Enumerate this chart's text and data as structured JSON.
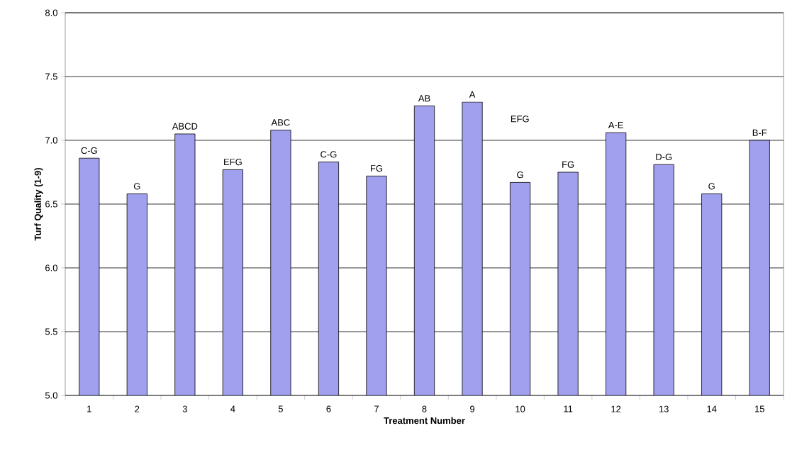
{
  "chart_data": {
    "type": "bar",
    "xlabel": "Treatment Number",
    "ylabel": "Turf Quality (1-9)",
    "categories": [
      "1",
      "2",
      "3",
      "4",
      "5",
      "6",
      "7",
      "8",
      "9",
      "10",
      "11",
      "12",
      "13",
      "14",
      "15"
    ],
    "values": [
      6.86,
      6.58,
      7.05,
      6.77,
      7.08,
      6.83,
      6.72,
      7.27,
      7.3,
      6.67,
      6.75,
      7.06,
      6.81,
      6.58,
      7.0
    ],
    "color": "#a0a0ee",
    "ylim": [
      5.0,
      8.0
    ],
    "yticks": [
      {
        "value": 5.0,
        "label": "5.0"
      },
      {
        "value": 5.5,
        "label": "5.5"
      },
      {
        "value": 6.0,
        "label": "6.0"
      },
      {
        "value": 6.5,
        "label": "6.5"
      },
      {
        "value": 7.0,
        "label": "7.0"
      },
      {
        "value": 7.5,
        "label": "7.5"
      },
      {
        "value": 8.0,
        "label": "8.0"
      }
    ],
    "grid": "y",
    "annotations": [
      {
        "text": "C-G",
        "x": "1",
        "y": 6.86
      },
      {
        "text": "G",
        "x": "2",
        "y": 6.58
      },
      {
        "text": "ABCD",
        "x": "3",
        "y": 7.05
      },
      {
        "text": "EFG",
        "x": "4",
        "y": 6.77
      },
      {
        "text": "ABC",
        "x": "5",
        "y": 7.08
      },
      {
        "text": "C-G",
        "x": "6",
        "y": 6.83
      },
      {
        "text": "FG",
        "x": "7",
        "y": 6.72
      },
      {
        "text": "AB",
        "x": "8",
        "y": 7.27
      },
      {
        "text": "A",
        "x": "9",
        "y": 7.3
      },
      "EFG",
      {
        "text": "G",
        "x": "10",
        "y": 6.67
      },
      {
        "text": "FG",
        "x": "11",
        "y": 6.75
      },
      {
        "text": "A-E",
        "x": "12",
        "y": 7.06
      },
      {
        "text": "D-G",
        "x": "13",
        "y": 6.81
      },
      {
        "text": "G",
        "x": "14",
        "y": 6.58
      },
      {
        "text": "B-F",
        "x": "15",
        "y": 7.0
      }
    ]
  }
}
